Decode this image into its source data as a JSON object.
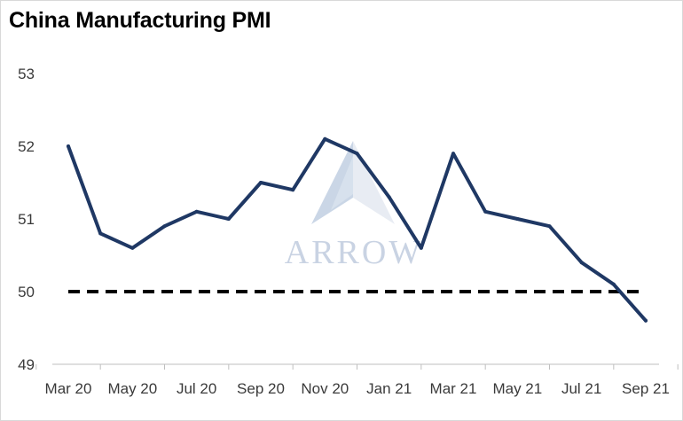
{
  "chart_data": {
    "type": "line",
    "title": "China Manufacturing PMI",
    "xlabel": "",
    "ylabel": "",
    "ylim": [
      49,
      53
    ],
    "yticks": [
      "49",
      "50",
      "51",
      "52",
      "53"
    ],
    "xtick_labels": [
      "Mar 20",
      "May 20",
      "Jul 20",
      "Sep 20",
      "Nov 20",
      "Jan 21",
      "Mar 21",
      "May 21",
      "Jul 21",
      "Sep 21"
    ],
    "x": [
      "Mar 20",
      "Apr 20",
      "May 20",
      "Jun 20",
      "Jul 20",
      "Aug 20",
      "Sep 20",
      "Oct 20",
      "Nov 20",
      "Dec 20",
      "Jan 21",
      "Feb 21",
      "Mar 21",
      "Apr 21",
      "May 21",
      "Jun 21",
      "Jul 21",
      "Aug 21",
      "Sep 21"
    ],
    "series": [
      {
        "values": [
          52.0,
          50.8,
          50.6,
          50.9,
          51.1,
          51.0,
          51.5,
          51.4,
          52.1,
          51.9,
          51.3,
          50.6,
          51.9,
          51.1,
          51.0,
          50.9,
          50.4,
          50.1,
          49.6
        ],
        "color": "#1f3864"
      }
    ],
    "reference_line": {
      "value": 50,
      "style": "dashed",
      "color": "#000000"
    },
    "grid": false,
    "legend": "none"
  },
  "watermark": {
    "text": "ARROW",
    "icon": "arrow-logo-icon"
  }
}
